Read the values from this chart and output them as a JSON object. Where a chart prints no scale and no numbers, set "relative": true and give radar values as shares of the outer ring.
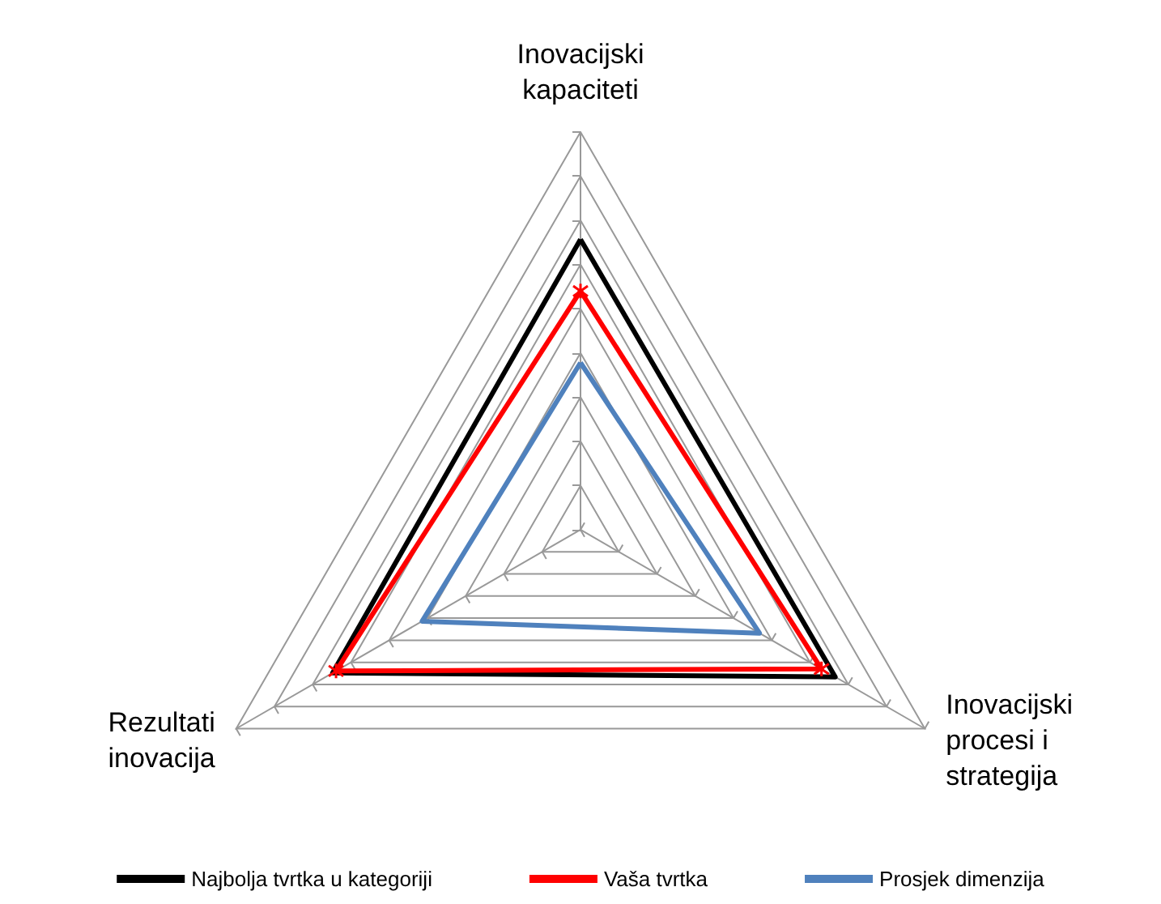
{
  "chart_data": {
    "type": "radar",
    "relative": true,
    "legend": "bottom",
    "grid": true,
    "categories": [
      "Inovacijski kapaciteti",
      "Inovacijski procesi i strategija",
      "Rezultati inovacija"
    ],
    "series": [
      {
        "name": "Najbolja tvrtka u kategoriji",
        "color": "#000000",
        "values": [
          0.73,
          0.74,
          0.72
        ]
      },
      {
        "name": "Vaša tvrtka",
        "color": "#ff0000",
        "values": [
          0.6,
          0.7,
          0.71
        ],
        "marker": "cross"
      },
      {
        "name": "Prosjek dimenzija",
        "color": "#4f81bd",
        "values": [
          0.42,
          0.52,
          0.46
        ]
      }
    ]
  }
}
